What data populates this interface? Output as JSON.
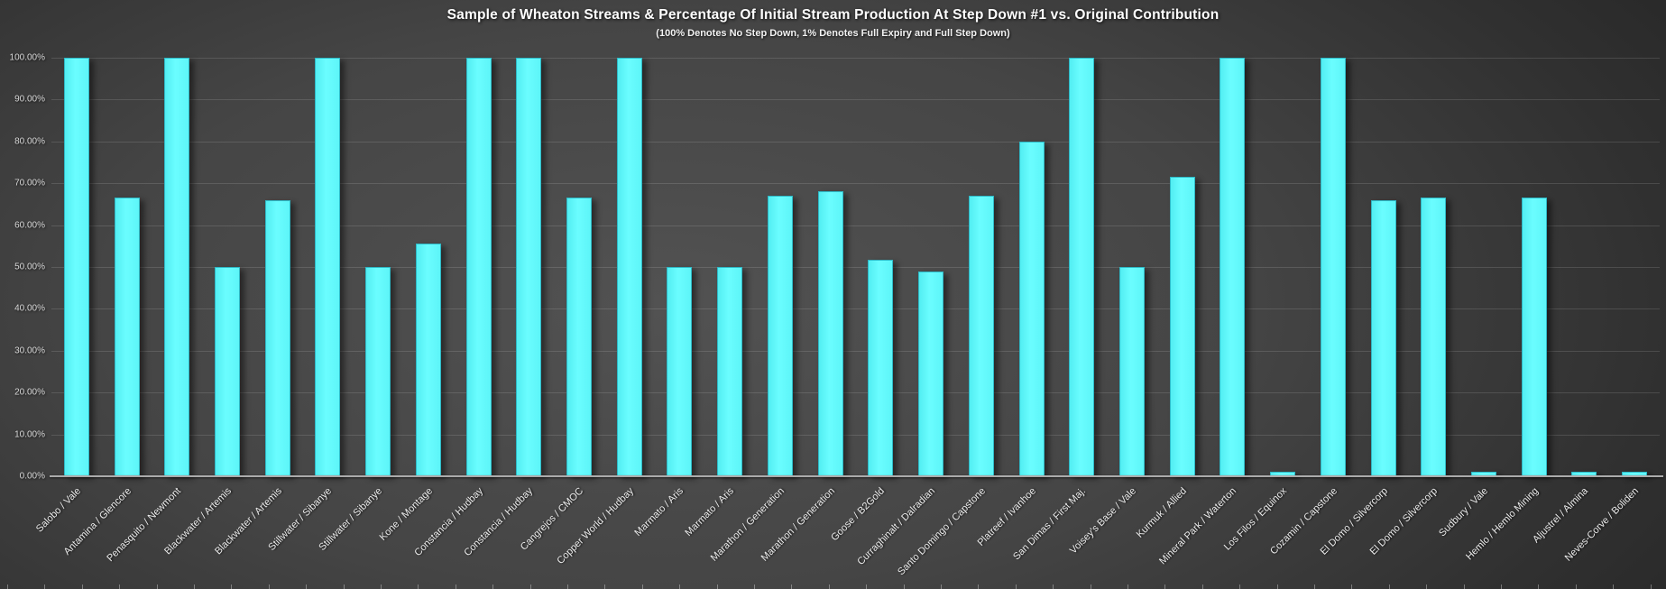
{
  "header": {
    "title": "Sample of Wheaton Streams & Percentage Of Initial Stream Production At Step Down #1 vs. Original Contribution",
    "subtitle": "(100% Denotes No Step Down, 1% Denotes Full Expiry and Full Step Down)"
  },
  "colors": {
    "bar_fill": "#61F9FB",
    "bar_border": "#2FB9C6",
    "background_center": "#525252",
    "background_edge": "#262626",
    "axis_line": "#ABABAB",
    "text": "#FFFFFF"
  },
  "chart_data": {
    "type": "bar",
    "title": "Sample of Wheaton Streams & Percentage Of Initial Stream Production At Step Down #1 vs. Original Contribution",
    "subtitle": "(100% Denotes No Step Down, 1% Denotes Full Expiry and Full Step Down)",
    "xlabel": "",
    "ylabel": "",
    "ylim": [
      0,
      100
    ],
    "grid": true,
    "legend": false,
    "y_ticks_bottom_to_top": [
      "0.00%",
      "10.00%",
      "20.00%",
      "30.00%",
      "40.00%",
      "50.00%",
      "60.00%",
      "70.00%",
      "80.00%",
      "90.00%",
      "100.00%"
    ],
    "categories": [
      "Salobo / Vale",
      "Antamina / Glencore",
      "Penasquito / Newmont",
      "Blackwater / Artemis",
      "Blackwater / Artemis",
      "Stillwater / Sibanye",
      "Stillwater / Sibanye",
      "Kone / Montage",
      "Constancia / Hudbay",
      "Constancia / Hudbay",
      "Cangrejos / CMOC",
      "Copper World / Hudbay",
      "Marmato / Aris",
      "Marmato / Aris",
      "Marathon / Generation",
      "Marathon / Generation",
      "Goose / B2Gold",
      "Curraghinalt / Dalradian",
      "Santo Domingo / Capstone",
      "Platreef / Ivanhoe",
      "San Dimas / First Maj.",
      "Voisey's Base / Vale",
      "Kurmuk / Allied",
      "Mineral Park / Waterton",
      "Los Filos / Equinox",
      "Cozamin / Capstone",
      "El Domo / Silvercorp",
      "El Domo / Silvercorp",
      "Sudbury / Vale",
      "Hemlo / Hemlo Mining",
      "Aljustrel / Almina",
      "Neves-Corve / Boliden"
    ],
    "values": [
      100,
      66.67,
      100,
      50,
      66,
      100,
      50,
      55.5,
      100,
      100,
      66.67,
      100,
      50,
      50,
      67,
      68,
      51.8,
      49,
      67,
      80,
      100,
      50,
      71.5,
      100,
      1,
      100,
      66,
      66.67,
      1,
      66.7,
      1,
      1
    ]
  }
}
